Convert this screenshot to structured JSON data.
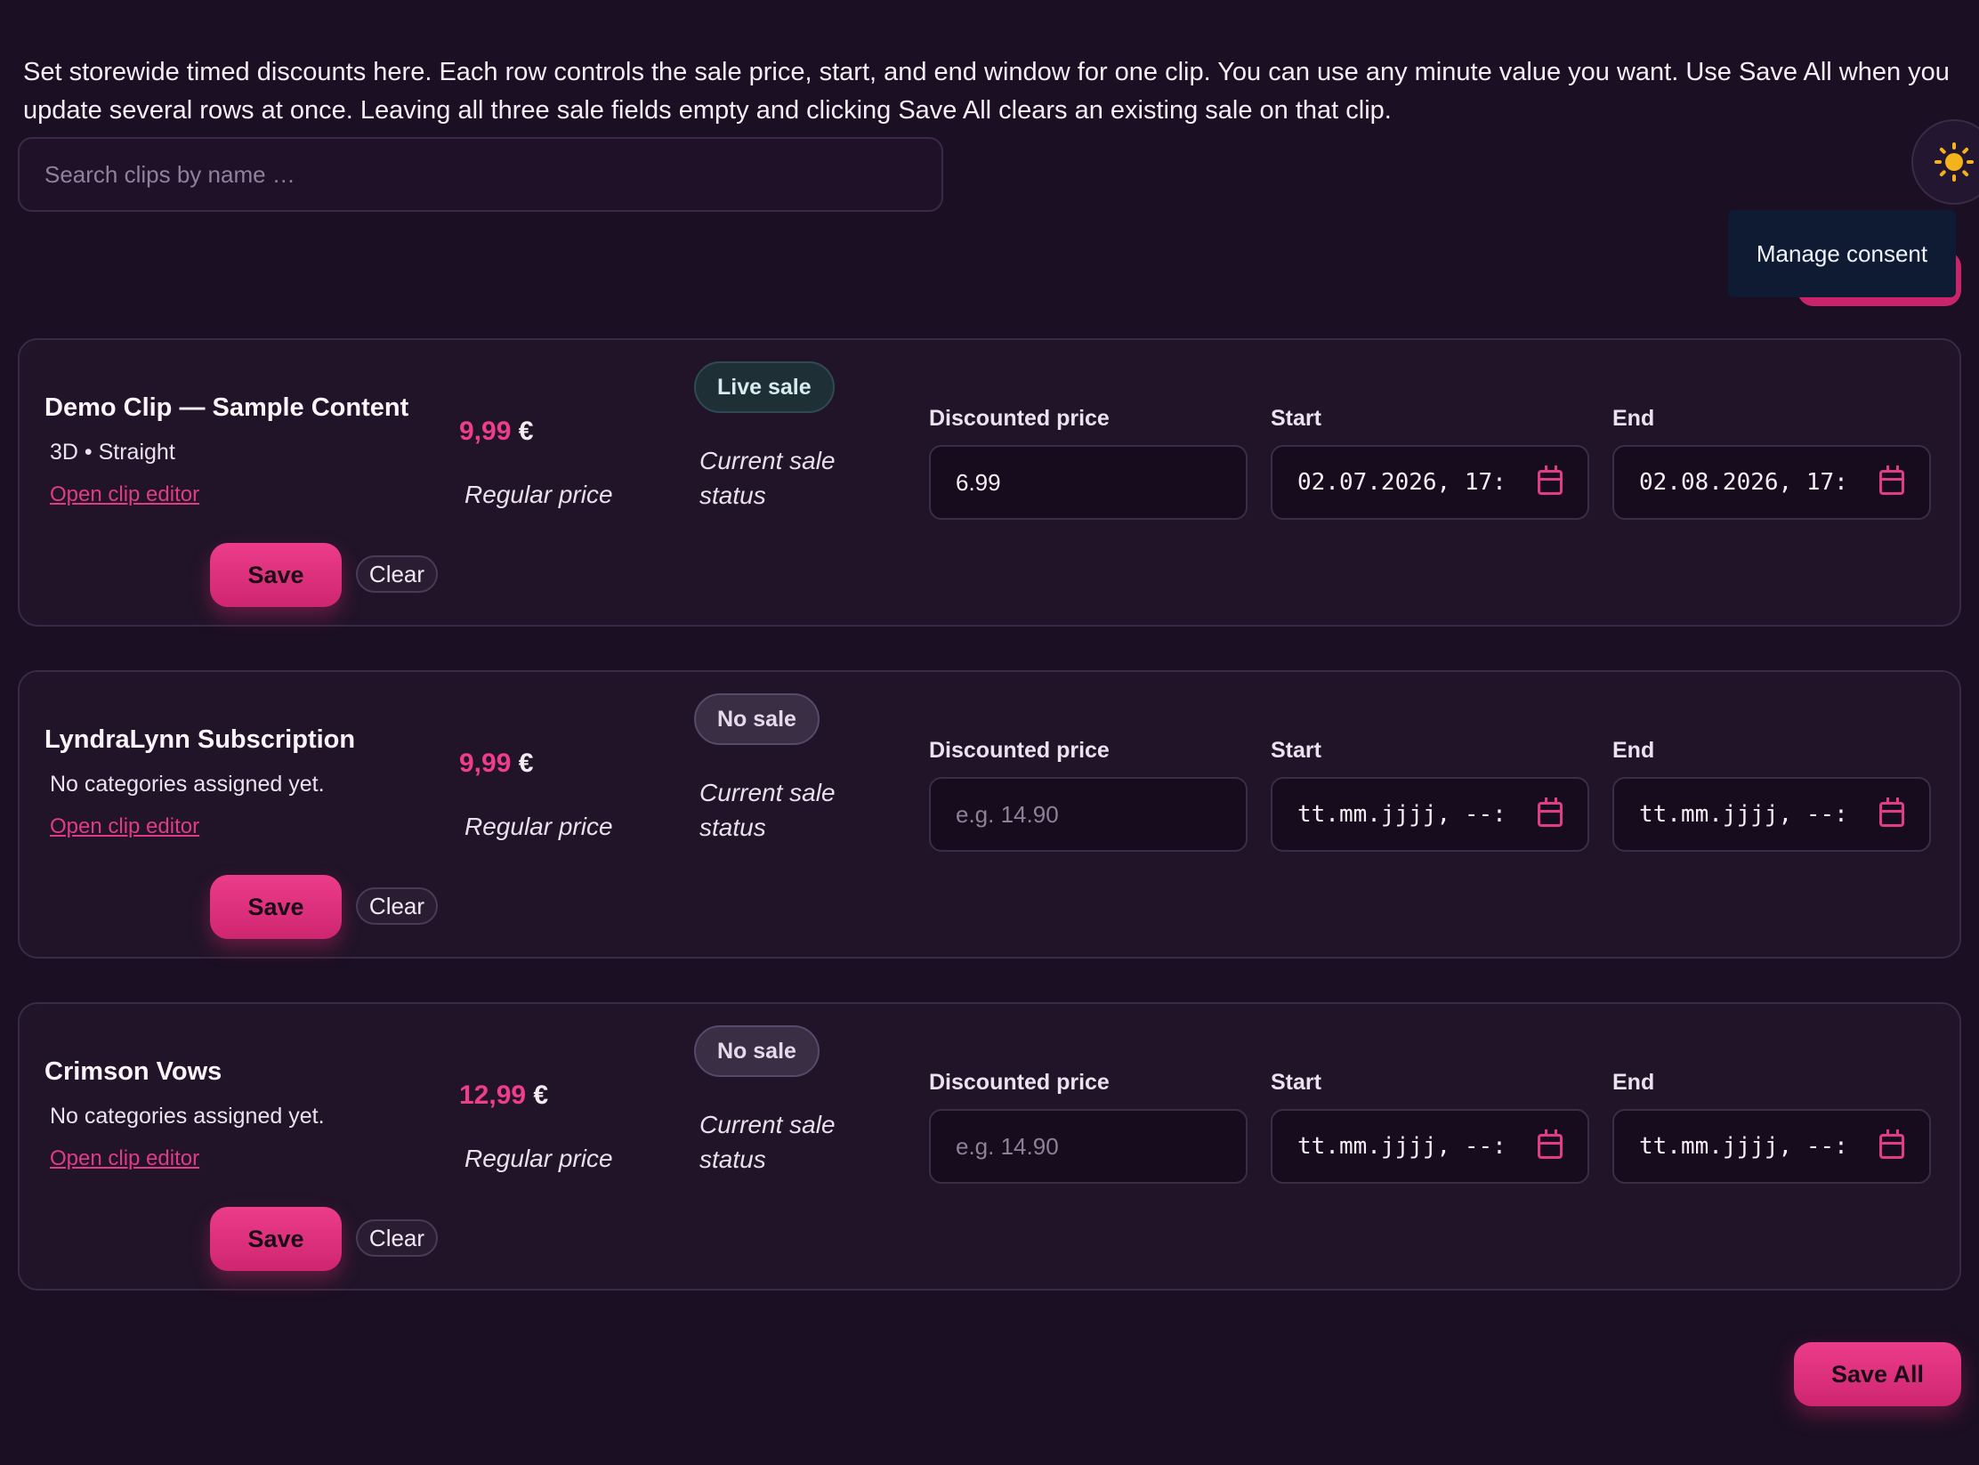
{
  "intro_text": "Set storewide timed discounts here. Each row controls the sale price, start, and end window for one clip. You can use any minute value you want. Use Save All when you update several rows at once. Leaving all three sale fields empty and clicking Save All clears an existing sale on that clip.",
  "search": {
    "placeholder": "Search clips by name …",
    "value": ""
  },
  "theme_toggle": {
    "icon": "sun-icon"
  },
  "consent": {
    "label": "Manage consent"
  },
  "labels": {
    "regular_price": "Regular price",
    "current_sale_status": "Current sale status",
    "discounted_price": "Discounted price",
    "start": "Start",
    "end": "End",
    "open_editor": "Open clip editor",
    "save": "Save",
    "clear": "Clear"
  },
  "clips": [
    {
      "title": "Demo Clip — Sample Content",
      "categories": "3D • Straight",
      "price": "9,99",
      "currency": "€",
      "status": "Live sale",
      "status_kind": "live",
      "discount_value": "6.99",
      "discount_placeholder": "e.g. 14.90",
      "start_value": "02.07.2026, 17:",
      "end_value": "02.08.2026, 17:"
    },
    {
      "title": "LyndraLynn Subscription",
      "categories": "No categories assigned yet.",
      "price": "9,99",
      "currency": "€",
      "status": "No sale",
      "status_kind": "none",
      "discount_value": "",
      "discount_placeholder": "e.g. 14.90",
      "start_value": "tt.mm.jjjj, --:",
      "end_value": "tt.mm.jjjj, --:"
    },
    {
      "title": "Crimson Vows",
      "categories": "No categories assigned yet.",
      "price": "12,99",
      "currency": "€",
      "status": "No sale",
      "status_kind": "none",
      "discount_value": "",
      "discount_placeholder": "e.g. 14.90",
      "start_value": "tt.mm.jjjj, --:",
      "end_value": "tt.mm.jjjj, --:"
    }
  ],
  "save_all": {
    "label": "Save All"
  },
  "colors": {
    "accent": "#e03c86",
    "background": "#1b0f23",
    "card": "#211428"
  }
}
